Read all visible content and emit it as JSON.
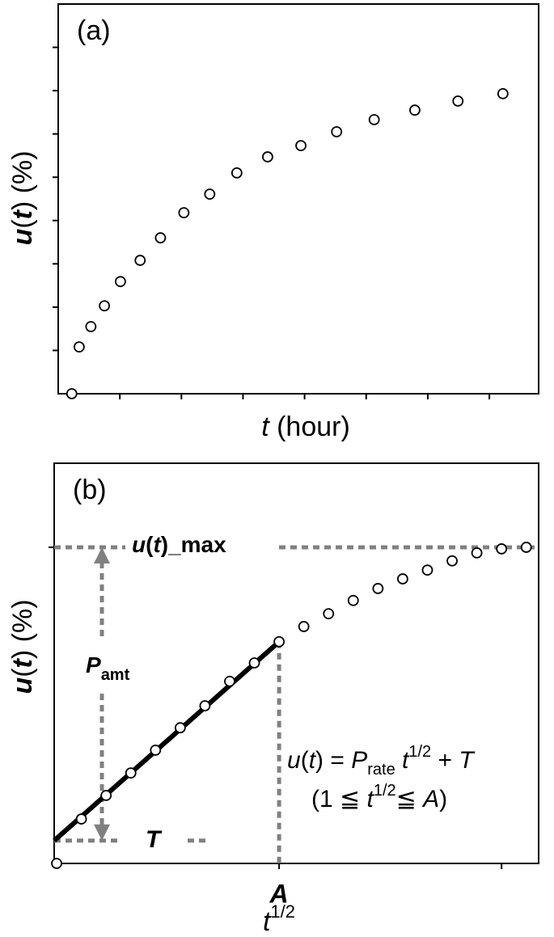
{
  "chart_data": [
    {
      "type": "scatter",
      "panel_label": "(a)",
      "x_label": [
        "t",
        " (hour)"
      ],
      "y_label": [
        "u",
        "(",
        "t",
        ") (%)"
      ],
      "x": [
        0.22,
        0.34,
        0.53,
        0.75,
        1.01,
        1.33,
        1.66,
        2.04,
        2.46,
        2.9,
        3.4,
        3.94,
        4.52,
        5.13,
        5.79,
        6.49,
        7.22
      ],
      "values": [
        0,
        1.08,
        1.55,
        2.03,
        2.59,
        3.08,
        3.6,
        4.18,
        4.61,
        5.1,
        5.47,
        5.73,
        6.05,
        6.33,
        6.55,
        6.76,
        6.93
      ],
      "xlim": [
        0,
        7.8
      ],
      "ylim": [
        0,
        9
      ],
      "xticks": [
        1,
        2,
        3,
        4,
        5,
        6,
        7
      ],
      "yticks": [
        1,
        2,
        3,
        4,
        5,
        6,
        7,
        8
      ],
      "marker_color": "#000000"
    },
    {
      "type": "scatter",
      "panel_label": "(b)",
      "x_label": [
        "t",
        "1/2"
      ],
      "y_label": [
        "u",
        "(",
        "t",
        ") (%)"
      ],
      "x": [
        0,
        1,
        2,
        3,
        4,
        5,
        6,
        7,
        8,
        9,
        10,
        11,
        12,
        13,
        14,
        15,
        16,
        17,
        18,
        19
      ],
      "values": [
        0,
        11.1,
        17,
        22.6,
        28.3,
        33.9,
        39.4,
        45.5,
        50.1,
        55.4,
        59.2,
        62.4,
        65.7,
        68.7,
        71.1,
        73.3,
        75.6,
        77.6,
        78.6,
        79
      ],
      "xlim": [
        -0.1,
        19.5
      ],
      "ylim": [
        0,
        100
      ],
      "xticks": [
        {
          "value": 9,
          "label": "A"
        },
        18
      ],
      "yticks": [
        79
      ],
      "marker_color": "#000000",
      "fit_line": {
        "x": [
          -0.1,
          9
        ],
        "values": [
          5.7,
          55.4
        ],
        "color": "#000000"
      },
      "annotations": {
        "max_label": [
          "u",
          "(",
          "t",
          ")_max"
        ],
        "amount_label": [
          "P",
          "amt"
        ],
        "intercept_label": "T",
        "equation": [
          "u",
          "(",
          "t",
          ") = ",
          "P",
          "rate",
          " t",
          "1/2",
          " + ",
          "T"
        ],
        "range": [
          "(1 ≦ ",
          "t",
          "1/2",
          "≦ ",
          "A",
          ")"
        ]
      }
    }
  ]
}
